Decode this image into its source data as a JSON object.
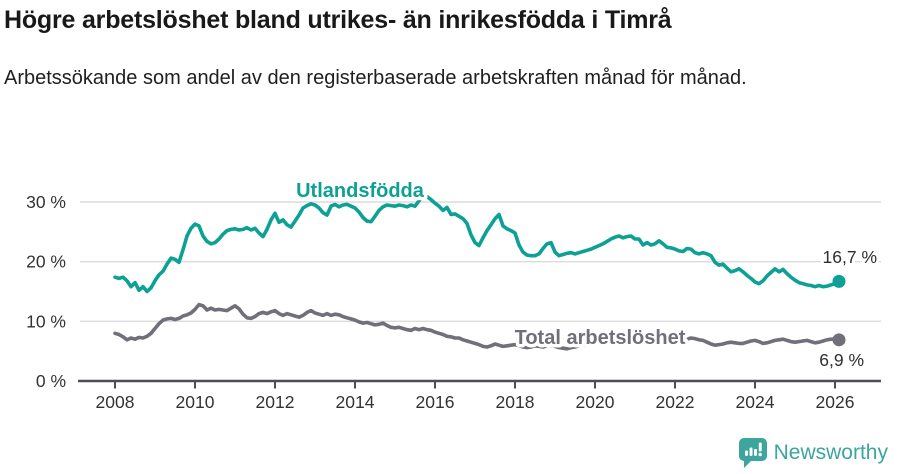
{
  "header": {
    "title": "Högre arbetslöshet bland utrikes- än inrikesfödda i Timrå",
    "subtitle": "Arbetssökande som andel av den registerbaserade arbetskraften månad för månad."
  },
  "footer": {
    "brand": "Newsworthy"
  },
  "colors": {
    "foreign_line": "#0da195",
    "total_line": "#706f7a",
    "grid": "#dbdbdb",
    "axis": "#4d4d55",
    "tick_text": "#333333",
    "value_text": "#2e2e2e",
    "brand_teal": "#3ca59e"
  },
  "chart_data": {
    "type": "line",
    "title": "Högre arbetslöshet bland utrikes- än inrikesfödda i Timrå",
    "subtitle": "Arbetssökande som andel av den registerbaserade arbetskraften månad för månad.",
    "xlabel": "",
    "ylabel": "",
    "x_ticks": [
      2008,
      2010,
      2012,
      2014,
      2016,
      2018,
      2020,
      2022,
      2024,
      2026
    ],
    "y_ticks": [
      0,
      10,
      20,
      30
    ],
    "y_tick_suffix": " %",
    "xlim": [
      2007.1,
      2027.2
    ],
    "ylim": [
      0,
      32
    ],
    "grid": "horizontal",
    "legend_position": "inline-labels",
    "series": [
      {
        "name": "Utlandsfödda",
        "color": "#0da195",
        "x_start": 2008.0,
        "x_step": 0.1,
        "end_value": 16.7,
        "end_label": "16,7 %",
        "values": [
          17.4,
          17.2,
          17.4,
          16.8,
          15.8,
          16.5,
          15.2,
          15.8,
          15.0,
          15.6,
          16.8,
          17.8,
          18.4,
          19.6,
          20.6,
          20.4,
          19.9,
          22.0,
          24.3,
          25.6,
          26.3,
          26.0,
          24.3,
          23.4,
          23.0,
          23.2,
          23.8,
          24.6,
          25.2,
          25.4,
          25.5,
          25.3,
          25.4,
          25.7,
          25.3,
          25.6,
          24.8,
          24.2,
          25.4,
          27.0,
          28.1,
          26.6,
          27.0,
          26.2,
          25.8,
          26.8,
          27.8,
          29.0,
          29.4,
          29.7,
          29.5,
          29.0,
          28.2,
          27.8,
          29.3,
          29.6,
          29.2,
          29.5,
          29.6,
          29.3,
          29.0,
          28.3,
          27.4,
          26.8,
          26.7,
          27.6,
          28.6,
          29.2,
          29.5,
          29.4,
          29.3,
          29.5,
          29.4,
          29.2,
          29.5,
          29.3,
          30.2,
          31.0,
          30.9,
          30.4,
          29.8,
          29.3,
          28.6,
          29.1,
          27.9,
          28.0,
          27.6,
          27.2,
          26.4,
          24.5,
          23.2,
          22.7,
          24.0,
          25.2,
          26.2,
          27.2,
          27.9,
          26.0,
          25.5,
          25.2,
          24.8,
          22.8,
          21.6,
          21.1,
          21.0,
          21.0,
          21.3,
          22.2,
          23.0,
          23.2,
          21.6,
          21.0,
          21.2,
          21.4,
          21.5,
          21.3,
          21.5,
          21.7,
          21.9,
          22.1,
          22.4,
          22.7,
          23.0,
          23.4,
          23.8,
          24.1,
          24.3,
          24.0,
          24.2,
          24.3,
          23.8,
          23.8,
          22.8,
          23.2,
          22.8,
          23.0,
          23.5,
          23.0,
          22.4,
          22.3,
          22.1,
          21.8,
          21.7,
          22.2,
          22.1,
          21.5,
          21.3,
          21.5,
          21.3,
          21.0,
          19.9,
          19.4,
          19.6,
          18.9,
          18.3,
          18.5,
          18.8,
          18.3,
          17.7,
          17.2,
          16.6,
          16.3,
          16.8,
          17.6,
          18.2,
          18.8,
          18.3,
          18.7,
          18.0,
          17.4,
          16.9,
          16.5,
          16.3,
          16.1,
          16.0,
          15.8,
          16.0,
          15.8,
          15.9,
          16.1,
          16.3,
          16.7
        ]
      },
      {
        "name": "Total arbetslöshet",
        "color": "#706f7a",
        "x_start": 2008.0,
        "x_step": 0.1,
        "end_value": 6.9,
        "end_label": "6,9 %",
        "values": [
          8.0,
          7.8,
          7.4,
          6.9,
          7.2,
          7.0,
          7.3,
          7.2,
          7.5,
          8.0,
          8.8,
          9.6,
          10.2,
          10.4,
          10.5,
          10.3,
          10.5,
          10.9,
          11.1,
          11.4,
          12.0,
          12.8,
          12.6,
          11.9,
          12.2,
          11.9,
          12.0,
          11.9,
          11.8,
          12.2,
          12.6,
          12.1,
          11.2,
          10.6,
          10.5,
          10.8,
          11.3,
          11.5,
          11.3,
          11.6,
          11.8,
          11.3,
          11.0,
          11.3,
          11.1,
          10.9,
          10.7,
          11.0,
          11.5,
          11.8,
          11.4,
          11.2,
          11.0,
          11.3,
          11.0,
          11.2,
          11.1,
          10.8,
          10.6,
          10.4,
          10.2,
          9.9,
          9.7,
          9.8,
          9.6,
          9.4,
          9.5,
          9.7,
          9.3,
          9.0,
          8.9,
          9.0,
          8.8,
          8.6,
          8.5,
          8.8,
          8.6,
          8.8,
          8.6,
          8.5,
          8.2,
          8.0,
          7.8,
          7.5,
          7.4,
          7.2,
          7.2,
          6.9,
          6.7,
          6.5,
          6.3,
          6.1,
          5.8,
          5.7,
          5.9,
          6.2,
          6.0,
          5.8,
          5.9,
          6.0,
          6.1,
          5.9,
          5.7,
          5.6,
          5.7,
          5.9,
          5.8,
          5.7,
          5.9,
          6.0,
          5.8,
          5.6,
          5.5,
          5.4,
          5.6,
          5.7,
          5.9,
          6.0,
          6.1,
          6.2,
          6.4,
          6.7,
          7.0,
          7.3,
          7.5,
          7.6,
          7.5,
          7.4,
          7.3,
          7.2,
          7.1,
          7.0,
          6.9,
          6.8,
          6.7,
          6.7,
          6.6,
          6.6,
          6.5,
          6.6,
          6.7,
          6.8,
          6.9,
          7.0,
          7.2,
          7.1,
          6.9,
          6.8,
          6.5,
          6.2,
          6.0,
          6.1,
          6.2,
          6.4,
          6.5,
          6.4,
          6.3,
          6.3,
          6.5,
          6.7,
          6.8,
          6.6,
          6.3,
          6.4,
          6.6,
          6.8,
          6.9,
          7.0,
          6.8,
          6.6,
          6.5,
          6.6,
          6.7,
          6.8,
          6.6,
          6.4,
          6.5,
          6.7,
          6.9,
          7.0,
          7.0,
          6.9
        ]
      }
    ]
  }
}
